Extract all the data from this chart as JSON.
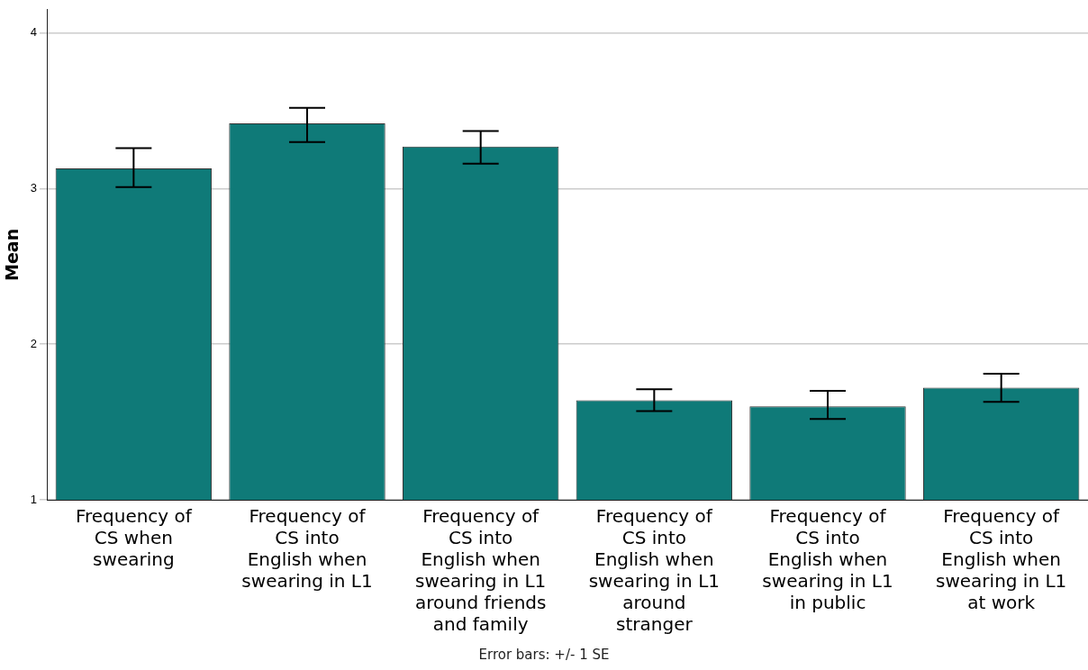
{
  "chart_data": {
    "type": "bar",
    "ylabel": "Mean",
    "categories": [
      "Frequency of CS when swearing",
      "Frequency of CS into English when swearing in L1",
      "Frequency of CS into English when swearing in L1 around friends and family",
      "Frequency of CS into English when swearing in L1 around stranger",
      "Frequency of CS into English when swearing in L1 in public",
      "Frequency of CS into English when swearing in L1 at work"
    ],
    "values": [
      3.13,
      3.42,
      3.27,
      1.64,
      1.6,
      1.72
    ],
    "errors": [
      [
        3.01,
        3.26
      ],
      [
        3.3,
        3.52
      ],
      [
        3.16,
        3.37
      ],
      [
        1.57,
        1.71
      ],
      [
        1.52,
        1.7
      ],
      [
        1.63,
        1.81
      ]
    ],
    "color": "#0f7a78",
    "ylim": [
      1,
      4.15
    ],
    "yticks": [
      1,
      2,
      3,
      4
    ],
    "grid": "y",
    "legend": false,
    "annotations": [
      "Error bars: +/- 1 SE"
    ]
  }
}
